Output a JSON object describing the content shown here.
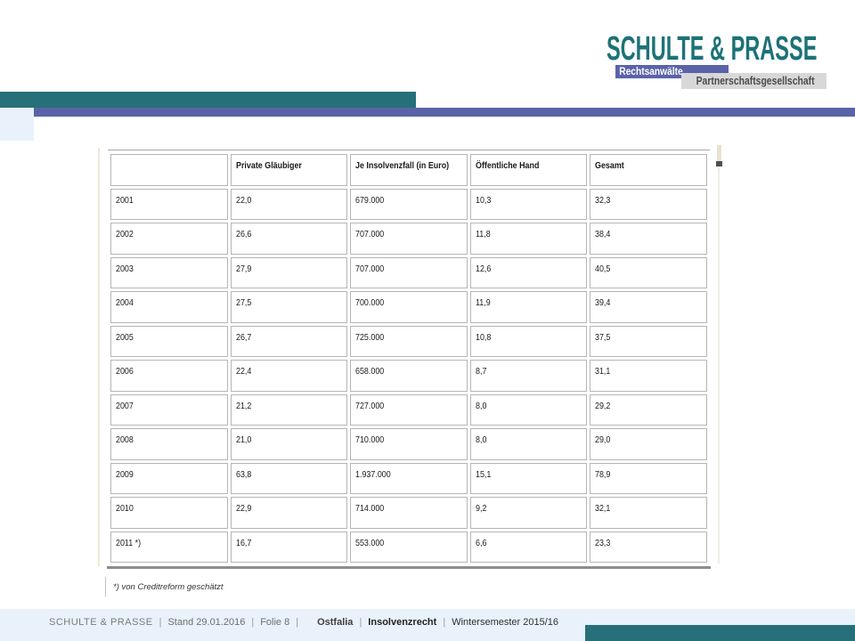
{
  "logo": {
    "title": "SCHULTE & PRASSE",
    "subtitle1": "Rechtsanwälte",
    "subtitle2": "Partnerschaftsgesellschaft"
  },
  "colors": {
    "teal": "#26707a",
    "purple": "#5a63a8",
    "footer_bg": "#e9f2fb",
    "logo_text": "#1d7278",
    "table_border": "#b5b5b5"
  },
  "table": {
    "headers": [
      "",
      "Private Gläubiger",
      "Je Insolvenzfall (in Euro)",
      "Öffentliche Hand",
      "Gesamt"
    ],
    "rows": [
      [
        "2001",
        "22,0",
        "679.000",
        "10,3",
        "32,3"
      ],
      [
        "2002",
        "26,6",
        "707.000",
        "11,8",
        "38,4"
      ],
      [
        "2003",
        "27,9",
        "707.000",
        "12,6",
        "40,5"
      ],
      [
        "2004",
        "27,5",
        "700.000",
        "11,9",
        "39,4"
      ],
      [
        "2005",
        "26,7",
        "725.000",
        "10,8",
        "37,5"
      ],
      [
        "2006",
        "22,4",
        "658.000",
        "8,7",
        "31,1"
      ],
      [
        "2007",
        "21,2",
        "727.000",
        "8,0",
        "29,2"
      ],
      [
        "2008",
        "21,0",
        "710.000",
        "8,0",
        "29,0"
      ],
      [
        "2009",
        "63,8",
        "1.937.000",
        "15,1",
        "78,9"
      ],
      [
        "2010",
        "22,9",
        "714.000",
        "9,2",
        "32,1"
      ],
      [
        "2011 *)",
        "16,7",
        "553.000",
        "6,6",
        "23,3"
      ]
    ]
  },
  "footnote": "*) von Creditreform geschätzt",
  "footer": {
    "brand": "SCHULTE & PRASSE",
    "sep": "|",
    "stand": "Stand 29.01.2016",
    "folie": "Folie 8",
    "org": "Ostfalia",
    "course": "Insolvenzrecht",
    "semester": "Wintersemester 2015/16"
  }
}
